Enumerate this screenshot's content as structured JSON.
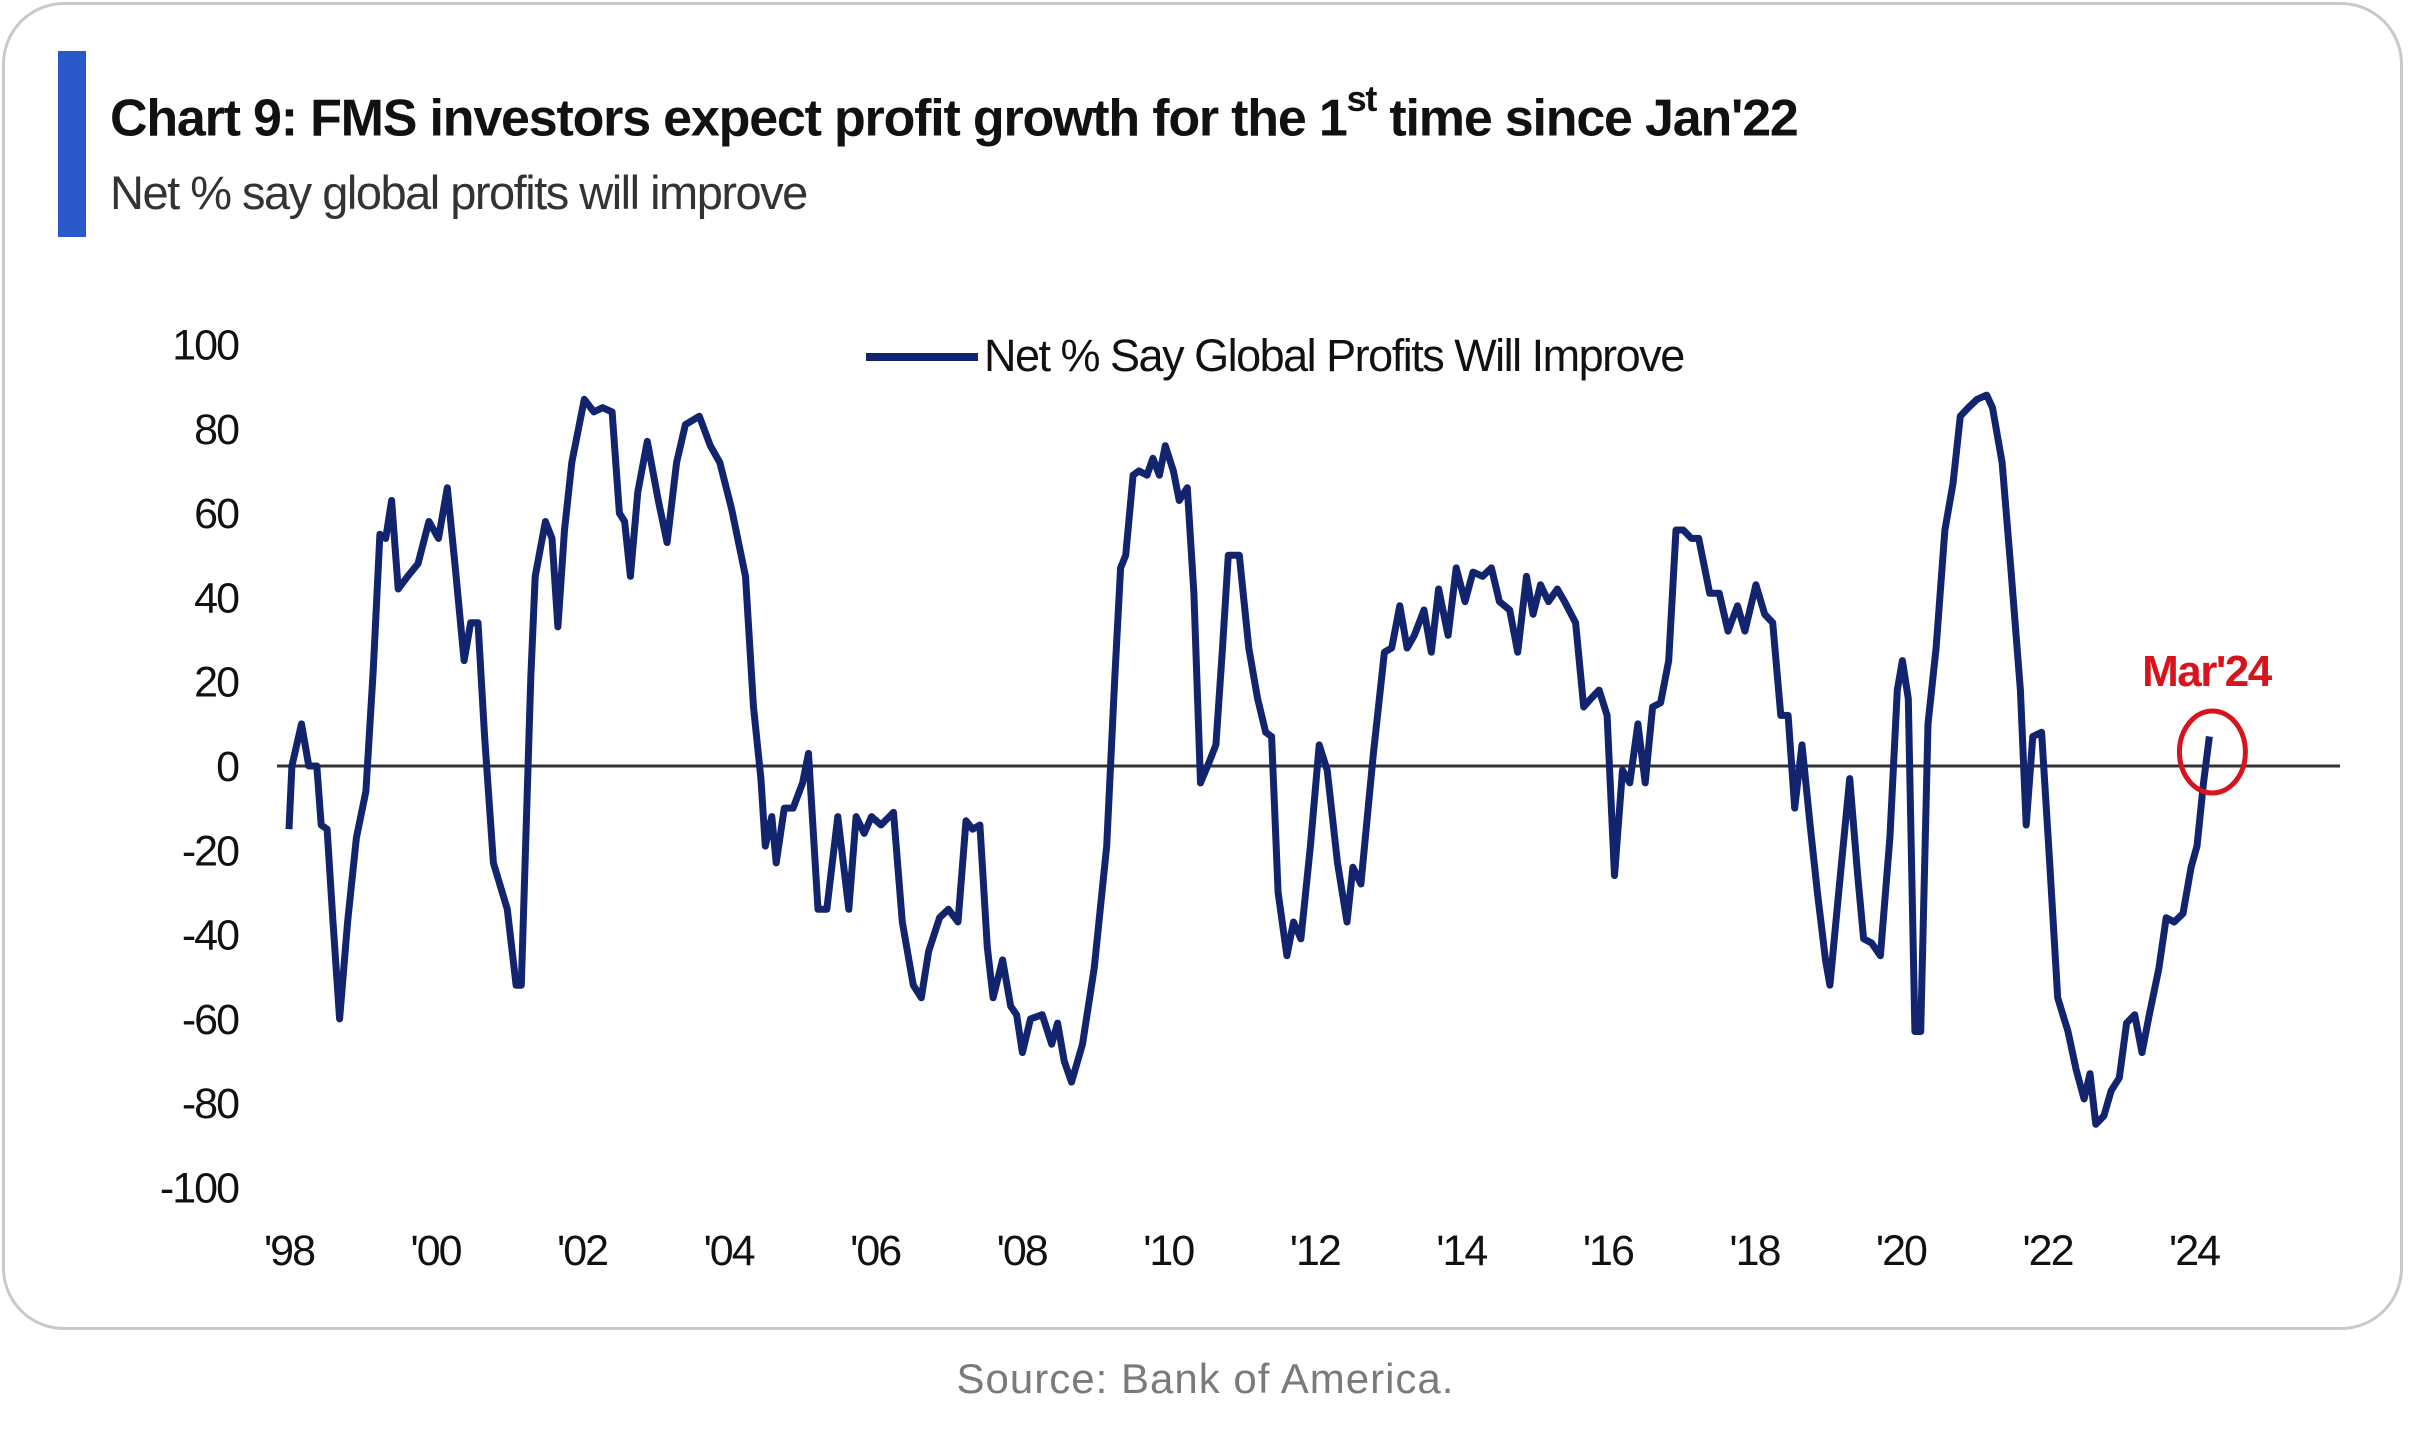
{
  "header": {
    "title_main": "Chart 9: FMS investors expect profit growth for the 1",
    "title_sup": "st",
    "title_tail": " time since Jan'22",
    "subtitle": "Net % say global profits will improve"
  },
  "source": "Source: Bank of America.",
  "colors": {
    "accent": "#2a58c9",
    "series": "#13246e",
    "annotation": "#d7141b"
  },
  "chart_data": {
    "type": "line",
    "title": "Chart 9: FMS investors expect profit growth for the 1st time since Jan'22",
    "subtitle": "Net % say global profits will improve",
    "xlabel": "",
    "ylabel": "",
    "ylim": [
      -100,
      100
    ],
    "xlim": [
      1998,
      2025
    ],
    "yticks": [
      100,
      80,
      60,
      40,
      20,
      0,
      -20,
      -40,
      -60,
      -80,
      -100
    ],
    "ytick_labels": [
      "100",
      "80",
      "60",
      "40",
      "20",
      "0",
      "-20",
      "-40",
      "-60",
      "-80",
      "-100"
    ],
    "xticks": [
      1998,
      2000,
      2002,
      2004,
      2006,
      2008,
      2010,
      2012,
      2014,
      2016,
      2018,
      2020,
      2022,
      2024
    ],
    "xtick_labels": [
      "'98",
      "'00",
      "'02",
      "'04",
      "'06",
      "'08",
      "'10",
      "'12",
      "'14",
      "'16",
      "'18",
      "'20",
      "'22",
      "'24"
    ],
    "grid": false,
    "zero_line": true,
    "legend": {
      "position": "top-center",
      "entries": [
        "Net % Say Global Profits Will Improve"
      ]
    },
    "annotation": {
      "label": "Mar'24",
      "x": 2024.21,
      "y": 7
    },
    "series": [
      {
        "name": "Net % Say Global Profits Will Improve",
        "x": [
          1998.0,
          1998.04,
          1998.17,
          1998.27,
          1998.38,
          1998.44,
          1998.52,
          1998.6,
          1998.69,
          1998.8,
          1998.92,
          1999.05,
          1999.15,
          1999.24,
          1999.32,
          1999.4,
          1999.49,
          1999.62,
          1999.76,
          1999.91,
          2000.04,
          2000.16,
          2000.27,
          2000.39,
          2000.48,
          2000.58,
          2000.67,
          2000.79,
          2000.98,
          2001.1,
          2001.17,
          2001.3,
          2001.36,
          2001.5,
          2001.59,
          2001.67,
          2001.76,
          2001.86,
          2002.03,
          2002.16,
          2002.28,
          2002.41,
          2002.51,
          2002.58,
          2002.66,
          2002.76,
          2002.89,
          2003.04,
          2003.16,
          2003.29,
          2003.41,
          2003.6,
          2003.75,
          2003.88,
          2004.04,
          2004.23,
          2004.34,
          2004.44,
          2004.5,
          2004.59,
          2004.65,
          2004.76,
          2004.88,
          2005.01,
          2005.09,
          2005.22,
          2005.34,
          2005.49,
          2005.64,
          2005.74,
          2005.85,
          2005.95,
          2006.08,
          2006.25,
          2006.37,
          2006.52,
          2006.63,
          2006.73,
          2006.88,
          2007.0,
          2007.13,
          2007.24,
          2007.33,
          2007.43,
          2007.53,
          2007.61,
          2007.74,
          2007.85,
          2007.93,
          2008.01,
          2008.12,
          2008.28,
          2008.41,
          2008.49,
          2008.58,
          2008.68,
          2008.83,
          2008.99,
          2009.16,
          2009.27,
          2009.35,
          2009.42,
          2009.52,
          2009.6,
          2009.71,
          2009.79,
          2009.88,
          2009.96,
          2010.07,
          2010.15,
          2010.26,
          2010.35,
          2010.44,
          2010.56,
          2010.65,
          2010.74,
          2010.82,
          2010.97,
          2011.1,
          2011.22,
          2011.33,
          2011.41,
          2011.5,
          2011.62,
          2011.71,
          2011.81,
          2011.94,
          2012.06,
          2012.17,
          2012.31,
          2012.44,
          2012.52,
          2012.63,
          2012.8,
          2012.95,
          2013.05,
          2013.16,
          2013.26,
          2013.36,
          2013.49,
          2013.59,
          2013.69,
          2013.82,
          2013.93,
          2014.05,
          2014.16,
          2014.29,
          2014.41,
          2014.52,
          2014.66,
          2014.77,
          2014.89,
          2014.98,
          2015.08,
          2015.19,
          2015.31,
          2015.41,
          2015.56,
          2015.67,
          2015.77,
          2015.88,
          2015.99,
          2016.09,
          2016.2,
          2016.3,
          2016.41,
          2016.51,
          2016.61,
          2016.72,
          2016.83,
          2016.93,
          2017.03,
          2017.14,
          2017.24,
          2017.39,
          2017.52,
          2017.64,
          2017.77,
          2017.87,
          2018.02,
          2018.14,
          2018.25,
          2018.36,
          2018.46,
          2018.55,
          2018.65,
          2018.76,
          2018.86,
          2018.97,
          2019.03,
          2019.15,
          2019.3,
          2019.41,
          2019.49,
          2019.6,
          2019.72,
          2019.85,
          2019.95,
          2020.02,
          2020.1,
          2020.19,
          2020.27,
          2020.37,
          2020.48,
          2020.6,
          2020.71,
          2020.81,
          2020.92,
          2021.04,
          2021.17,
          2021.25,
          2021.38,
          2021.5,
          2021.63,
          2021.71,
          2021.8,
          2021.92,
          2022.03,
          2022.14,
          2022.28,
          2022.39,
          2022.5,
          2022.58,
          2022.66,
          2022.77,
          2022.87,
          2022.98,
          2023.08,
          2023.19,
          2023.29,
          2023.39,
          2023.52,
          2023.62,
          2023.73,
          2023.85,
          2023.96,
          2024.04,
          2024.13,
          2024.21
        ],
        "y": [
          -15,
          0,
          10,
          0,
          0,
          -14,
          -15,
          -37,
          -60,
          -37,
          -17,
          -6,
          23,
          55,
          54,
          63,
          42,
          45,
          48,
          58,
          54,
          66,
          47,
          25,
          34,
          34,
          7,
          -23,
          -34,
          -52,
          -52,
          21,
          45,
          58,
          54,
          33,
          56,
          72,
          87,
          84,
          85,
          84,
          60,
          58,
          45,
          65,
          77,
          63,
          53,
          72,
          81,
          83,
          76,
          72,
          61,
          45,
          14,
          -3,
          -19,
          -12,
          -23,
          -10,
          -10,
          -4,
          3,
          -34,
          -34,
          -12,
          -34,
          -12,
          -16,
          -12,
          -14,
          -11,
          -37,
          -52,
          -55,
          -44,
          -36,
          -34,
          -37,
          -13,
          -15,
          -14,
          -43,
          -55,
          -46,
          -57,
          -59,
          -68,
          -60,
          -59,
          -66,
          -61,
          -70,
          -75,
          -66,
          -48,
          -19,
          21,
          47,
          50,
          69,
          70,
          69,
          73,
          69,
          76,
          70,
          63,
          66,
          41,
          -4,
          1,
          5,
          28,
          50,
          50,
          28,
          16,
          8,
          7,
          -30,
          -45,
          -37,
          -41,
          -19,
          5,
          -1,
          -23,
          -37,
          -24,
          -28,
          3,
          27,
          28,
          38,
          28,
          31,
          37,
          27,
          42,
          31,
          47,
          39,
          46,
          45,
          47,
          39,
          37,
          27,
          45,
          36,
          43,
          39,
          42,
          39,
          34,
          14,
          16,
          18,
          12,
          -26,
          -1,
          -4,
          10,
          -4,
          14,
          15,
          25,
          56,
          56,
          54,
          54,
          41,
          41,
          32,
          38,
          32,
          43,
          36,
          34,
          12,
          12,
          -10,
          5,
          -14,
          -30,
          -46,
          -52,
          -30,
          -3,
          -26,
          -41,
          -42,
          -45,
          -17,
          18,
          25,
          16,
          -63,
          -63,
          10,
          28,
          56,
          67,
          83,
          85,
          87,
          88,
          85,
          72,
          47,
          18,
          -14,
          7,
          8,
          -23,
          -55,
          -63,
          -72,
          -79,
          -73,
          -85,
          -83,
          -77,
          -74,
          -61,
          -59,
          -68,
          -59,
          -48,
          -36,
          -37,
          -35,
          -24,
          -19,
          -4,
          7
        ]
      }
    ]
  }
}
